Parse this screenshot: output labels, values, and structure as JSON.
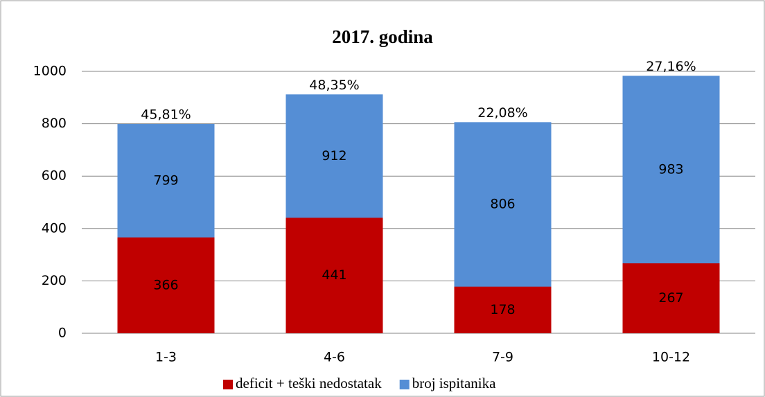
{
  "chart_data": {
    "type": "bar",
    "bar_mode": "overlap",
    "title": "2017. godina",
    "categories": [
      "1-3",
      "4-6",
      "7-9",
      "10-12"
    ],
    "series": [
      {
        "name": "deficit + teški nedostatak",
        "color": "#c00000",
        "values": [
          366,
          441,
          178,
          267
        ]
      },
      {
        "name": "broj ispitanika",
        "color": "#558ed5",
        "values": [
          799,
          912,
          806,
          983
        ]
      }
    ],
    "annotations": [
      "45,81%",
      "48,35%",
      "22,08%",
      "27,16%"
    ],
    "ylim": [
      0,
      1000
    ],
    "yticks": [
      0,
      200,
      400,
      600,
      800,
      1000
    ],
    "grid": true,
    "legend": "bottom"
  }
}
